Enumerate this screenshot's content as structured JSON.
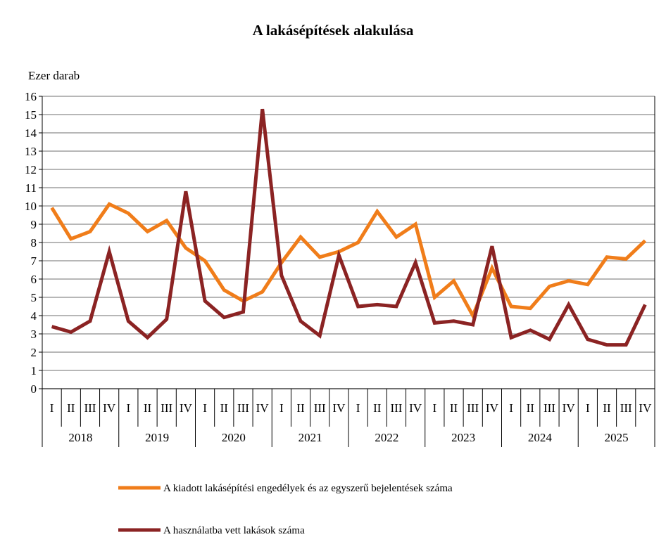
{
  "chart_data": {
    "type": "line",
    "title": "A lakásépítések alakulása",
    "ylabel": "Ezer darab",
    "xlabel": "",
    "ylim": [
      0,
      16
    ],
    "yticks": [
      0,
      1,
      2,
      3,
      4,
      5,
      6,
      7,
      8,
      9,
      10,
      11,
      12,
      13,
      14,
      15,
      16
    ],
    "grid": true,
    "legend_position": "bottom",
    "quarter_labels": [
      "I",
      "II",
      "III",
      "IV"
    ],
    "years": [
      "2018",
      "2019",
      "2020",
      "2021",
      "2022",
      "2023",
      "2024",
      "2025"
    ],
    "series": [
      {
        "name": "A kiadott lakásépítési engedélyek és az egyszerű bejelentések száma",
        "color": "#F07D1A",
        "values": [
          9.9,
          8.2,
          8.6,
          10.1,
          9.6,
          8.6,
          9.2,
          7.7,
          7.0,
          5.4,
          4.8,
          5.3,
          6.9,
          8.3,
          7.2,
          7.5,
          8.0,
          9.7,
          8.3,
          9.0,
          5.0,
          5.9,
          4.0,
          6.6,
          4.5,
          4.4,
          5.6,
          5.9,
          5.7,
          7.2,
          7.1,
          8.1
        ]
      },
      {
        "name": "A használatba vett lakások száma",
        "color": "#8B2323",
        "values": [
          3.4,
          3.1,
          3.7,
          7.5,
          3.7,
          2.8,
          3.8,
          10.8,
          4.8,
          3.9,
          4.2,
          15.3,
          6.2,
          3.7,
          2.9,
          7.3,
          4.5,
          4.6,
          4.5,
          6.9,
          3.6,
          3.7,
          3.5,
          7.8,
          2.8,
          3.2,
          2.7,
          4.6,
          2.7,
          2.4,
          2.4,
          4.6
        ]
      }
    ]
  }
}
